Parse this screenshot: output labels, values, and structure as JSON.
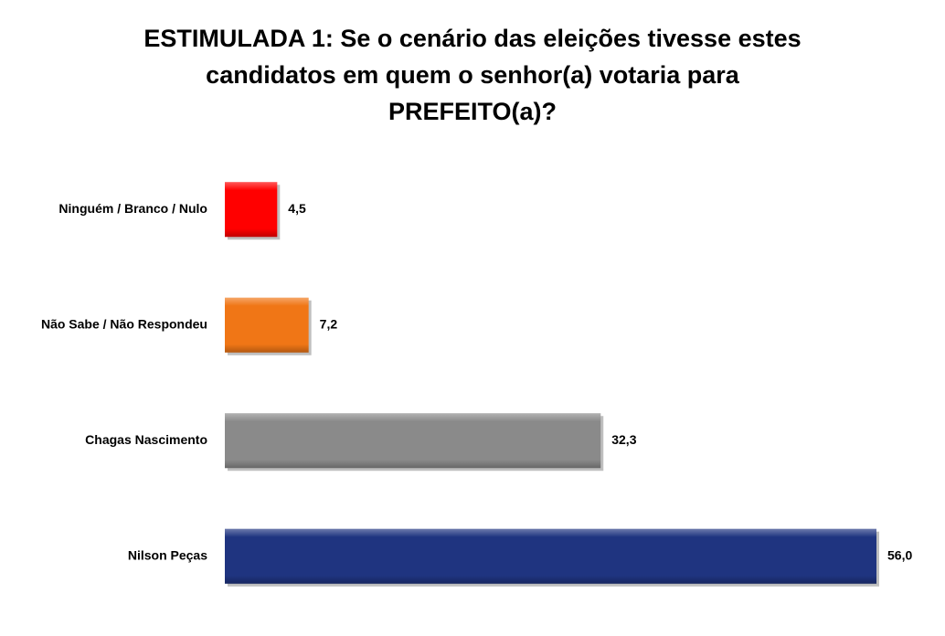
{
  "chart_data": {
    "type": "hbar",
    "title": "ESTIMULADA 1: Se o cenário das eleições tivesse estes candidatos em quem o senhor(a) votaria para PREFEITO(a)?",
    "categories": [
      "Ninguém / Branco / Nulo",
      "Não Sabe / Não Respondeu",
      "Chagas Nascimento",
      "Nilson Peças"
    ],
    "values": [
      4.5,
      7.2,
      32.3,
      56.0
    ],
    "value_labels": [
      "4,5",
      "7,2",
      "32,3",
      "56,0"
    ],
    "colors": [
      "#ff0000",
      "#f07616",
      "#8a8a8a",
      "#1f3480"
    ]
  }
}
